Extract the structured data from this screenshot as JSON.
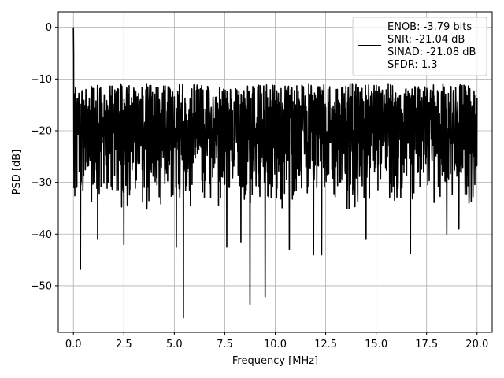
{
  "chart_data": {
    "type": "line",
    "xlabel": "Frequency [MHz]",
    "ylabel": "PSD [dB]",
    "xlim": [
      -0.75,
      20.75
    ],
    "ylim": [
      -59,
      3
    ],
    "grid": true,
    "legend_position": "top-right",
    "xticks": [
      0.0,
      2.5,
      5.0,
      7.5,
      10.0,
      12.5,
      15.0,
      17.5,
      20.0
    ],
    "xtick_labels": [
      "0.0",
      "2.5",
      "5.0",
      "7.5",
      "10.0",
      "12.5",
      "15.0",
      "17.5",
      "20.0"
    ],
    "yticks": [
      0,
      -10,
      -20,
      -30,
      -40,
      -50
    ],
    "ytick_labels": [
      "0",
      "−10",
      "−20",
      "−30",
      "−40",
      "−50"
    ],
    "series": [
      {
        "name": "ENOB: -3.79 bits\nSNR: -21.04 dB\nSINAD: -21.08 dB\nSFDR: 1.3",
        "color": "#000000",
        "x_range": [
          0,
          20
        ],
        "peak": {
          "x": 0.0,
          "y": 0.0
        },
        "baseline_db": -20,
        "upper_envelope_db": -11,
        "lower_envelope_db": -36,
        "notable_dips": [
          {
            "x": 0.35,
            "y": -46.8
          },
          {
            "x": 1.2,
            "y": -41
          },
          {
            "x": 2.5,
            "y": -42
          },
          {
            "x": 5.1,
            "y": -42.5
          },
          {
            "x": 5.45,
            "y": -56.2
          },
          {
            "x": 7.6,
            "y": -42.5
          },
          {
            "x": 8.3,
            "y": -41.5
          },
          {
            "x": 8.75,
            "y": -53.6
          },
          {
            "x": 9.5,
            "y": -52.1
          },
          {
            "x": 10.7,
            "y": -43
          },
          {
            "x": 11.9,
            "y": -44
          },
          {
            "x": 12.3,
            "y": -44
          },
          {
            "x": 14.5,
            "y": -41
          },
          {
            "x": 16.7,
            "y": -43.8
          },
          {
            "x": 18.5,
            "y": -40
          },
          {
            "x": 19.1,
            "y": -39
          }
        ]
      }
    ]
  },
  "legend": {
    "lines": [
      "ENOB: -3.79 bits",
      "SNR: -21.04 dB",
      "SINAD: -21.08 dB",
      "SFDR: 1.3"
    ],
    "swatch_color": "#000000"
  }
}
